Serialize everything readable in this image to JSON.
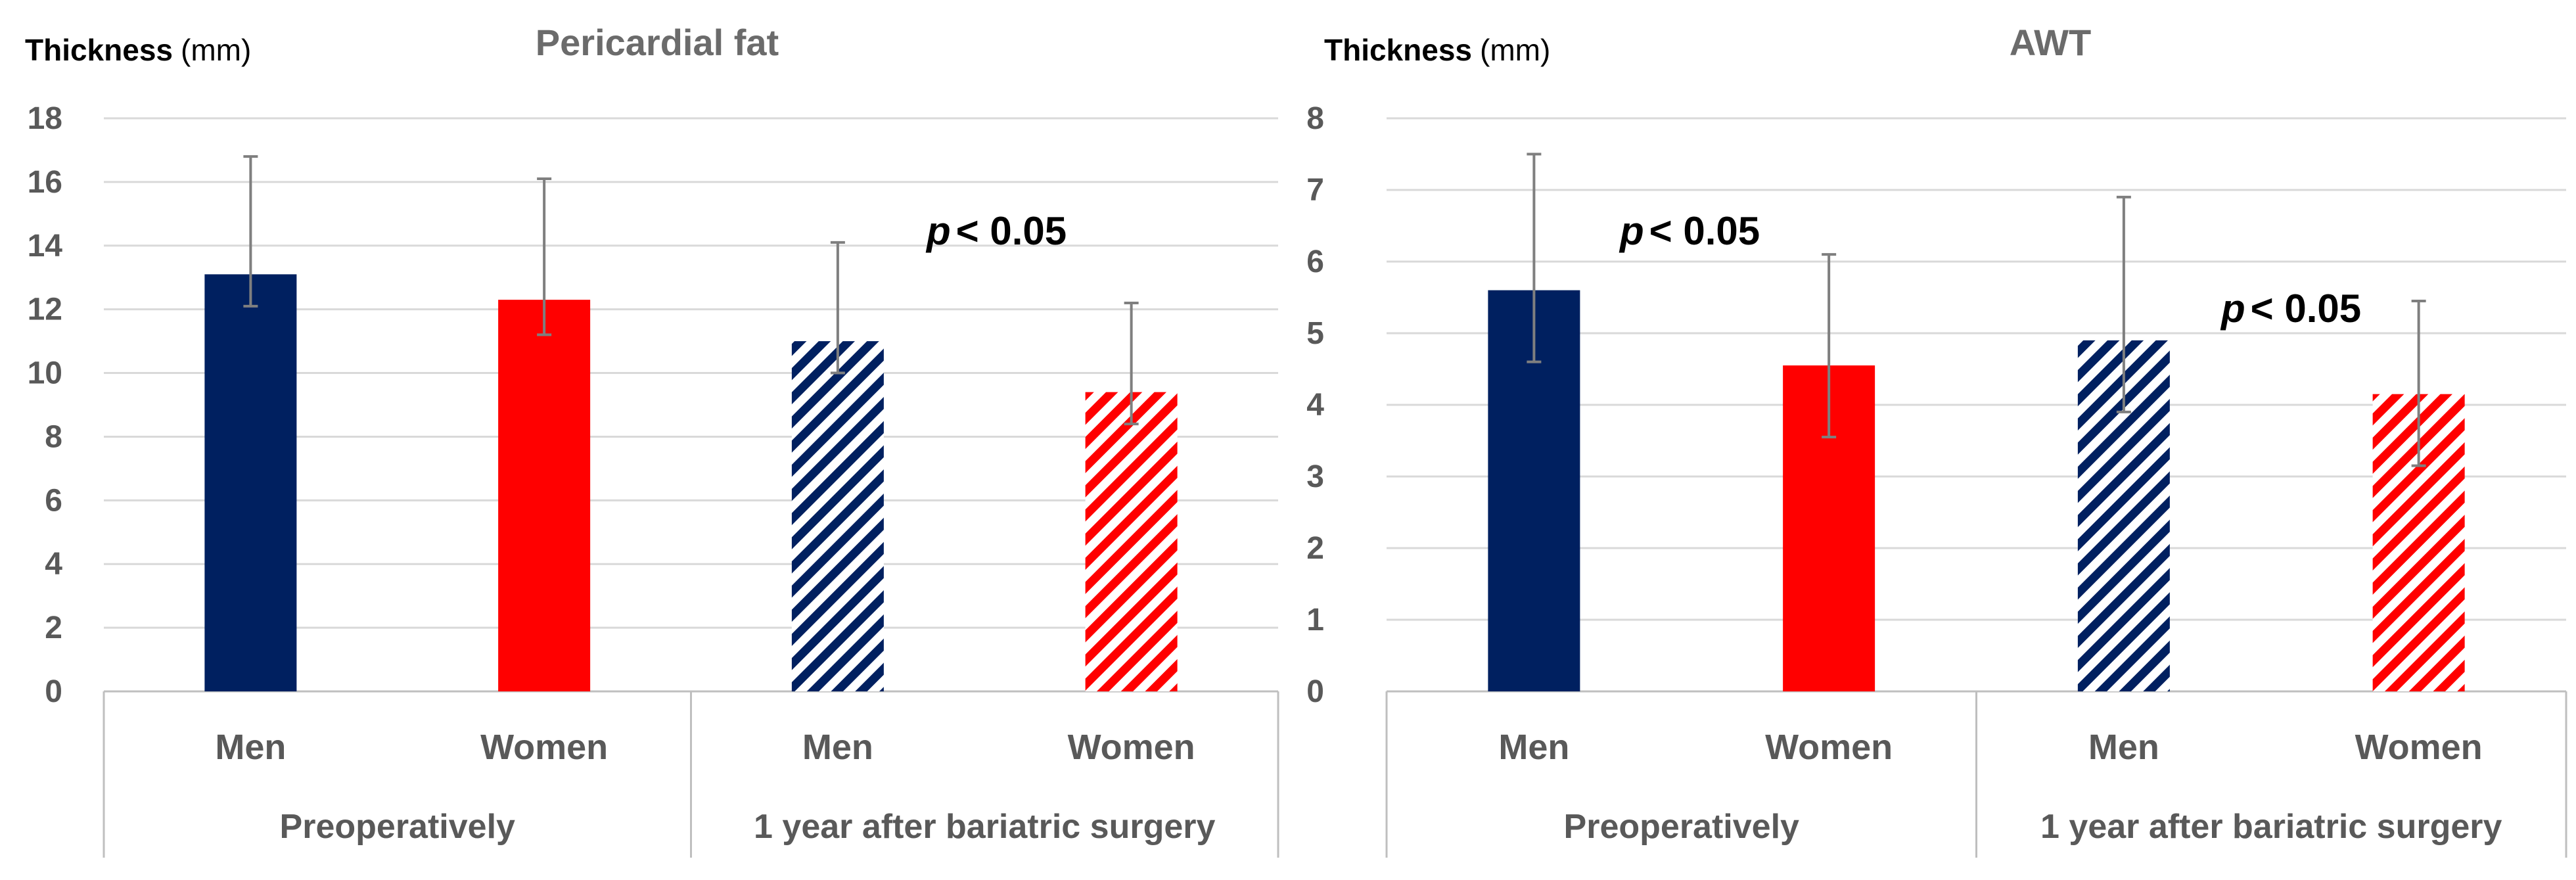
{
  "colors": {
    "men": "#002060",
    "women": "#ff0000",
    "text": "#595959",
    "title": "#6b6b6b",
    "grid": "#d9d9d9",
    "error": "#7f7f7f"
  },
  "chart_data": [
    {
      "type": "bar",
      "title": "Pericardial fat",
      "ylabel": "Thickness",
      "ylabel_unit": "(mm)",
      "ylim": [
        0,
        18
      ],
      "yticks": [
        0,
        2,
        4,
        6,
        8,
        10,
        12,
        14,
        16,
        18
      ],
      "categories": [
        "Men",
        "Women",
        "Men",
        "Women"
      ],
      "groups": [
        {
          "label": "Preoperatively",
          "span": [
            0,
            1
          ]
        },
        {
          "label": "1 year after bariatric surgery",
          "span": [
            2,
            3
          ]
        }
      ],
      "series": [
        {
          "name": "Thickness",
          "values": [
            13.1,
            12.3,
            11.0,
            9.4
          ],
          "error_upper": [
            16.8,
            16.1,
            14.1,
            12.2
          ],
          "error_lower": [
            12.1,
            11.2,
            10.0,
            8.4
          ],
          "fill": [
            "solid",
            "solid",
            "hatched",
            "hatched"
          ],
          "sex": [
            "men",
            "women",
            "men",
            "women"
          ]
        }
      ],
      "annotations": [
        {
          "text_italic": "p",
          "text": " < 0.05",
          "near_category": 2
        }
      ]
    },
    {
      "type": "bar",
      "title": "AWT",
      "ylabel": "Thickness",
      "ylabel_unit": "(mm)",
      "ylim": [
        0,
        8
      ],
      "yticks": [
        0,
        1,
        2,
        3,
        4,
        5,
        6,
        7,
        8
      ],
      "categories": [
        "Men",
        "Women",
        "Men",
        "Women"
      ],
      "groups": [
        {
          "label": "Preoperatively",
          "span": [
            0,
            1
          ]
        },
        {
          "label": "1 year after bariatric surgery",
          "span": [
            2,
            3
          ]
        }
      ],
      "series": [
        {
          "name": "Thickness",
          "values": [
            5.6,
            4.55,
            4.9,
            4.15
          ],
          "error_upper": [
            7.5,
            6.1,
            6.9,
            5.45
          ],
          "error_lower": [
            4.6,
            3.55,
            3.9,
            3.15
          ],
          "fill": [
            "solid",
            "solid",
            "hatched",
            "hatched"
          ],
          "sex": [
            "men",
            "women",
            "men",
            "women"
          ]
        }
      ],
      "annotations": [
        {
          "text_italic": "p",
          "text": " < 0.05",
          "near_category": 0
        },
        {
          "text_italic": "p",
          "text": " < 0.05",
          "near_category": 3
        }
      ]
    }
  ]
}
